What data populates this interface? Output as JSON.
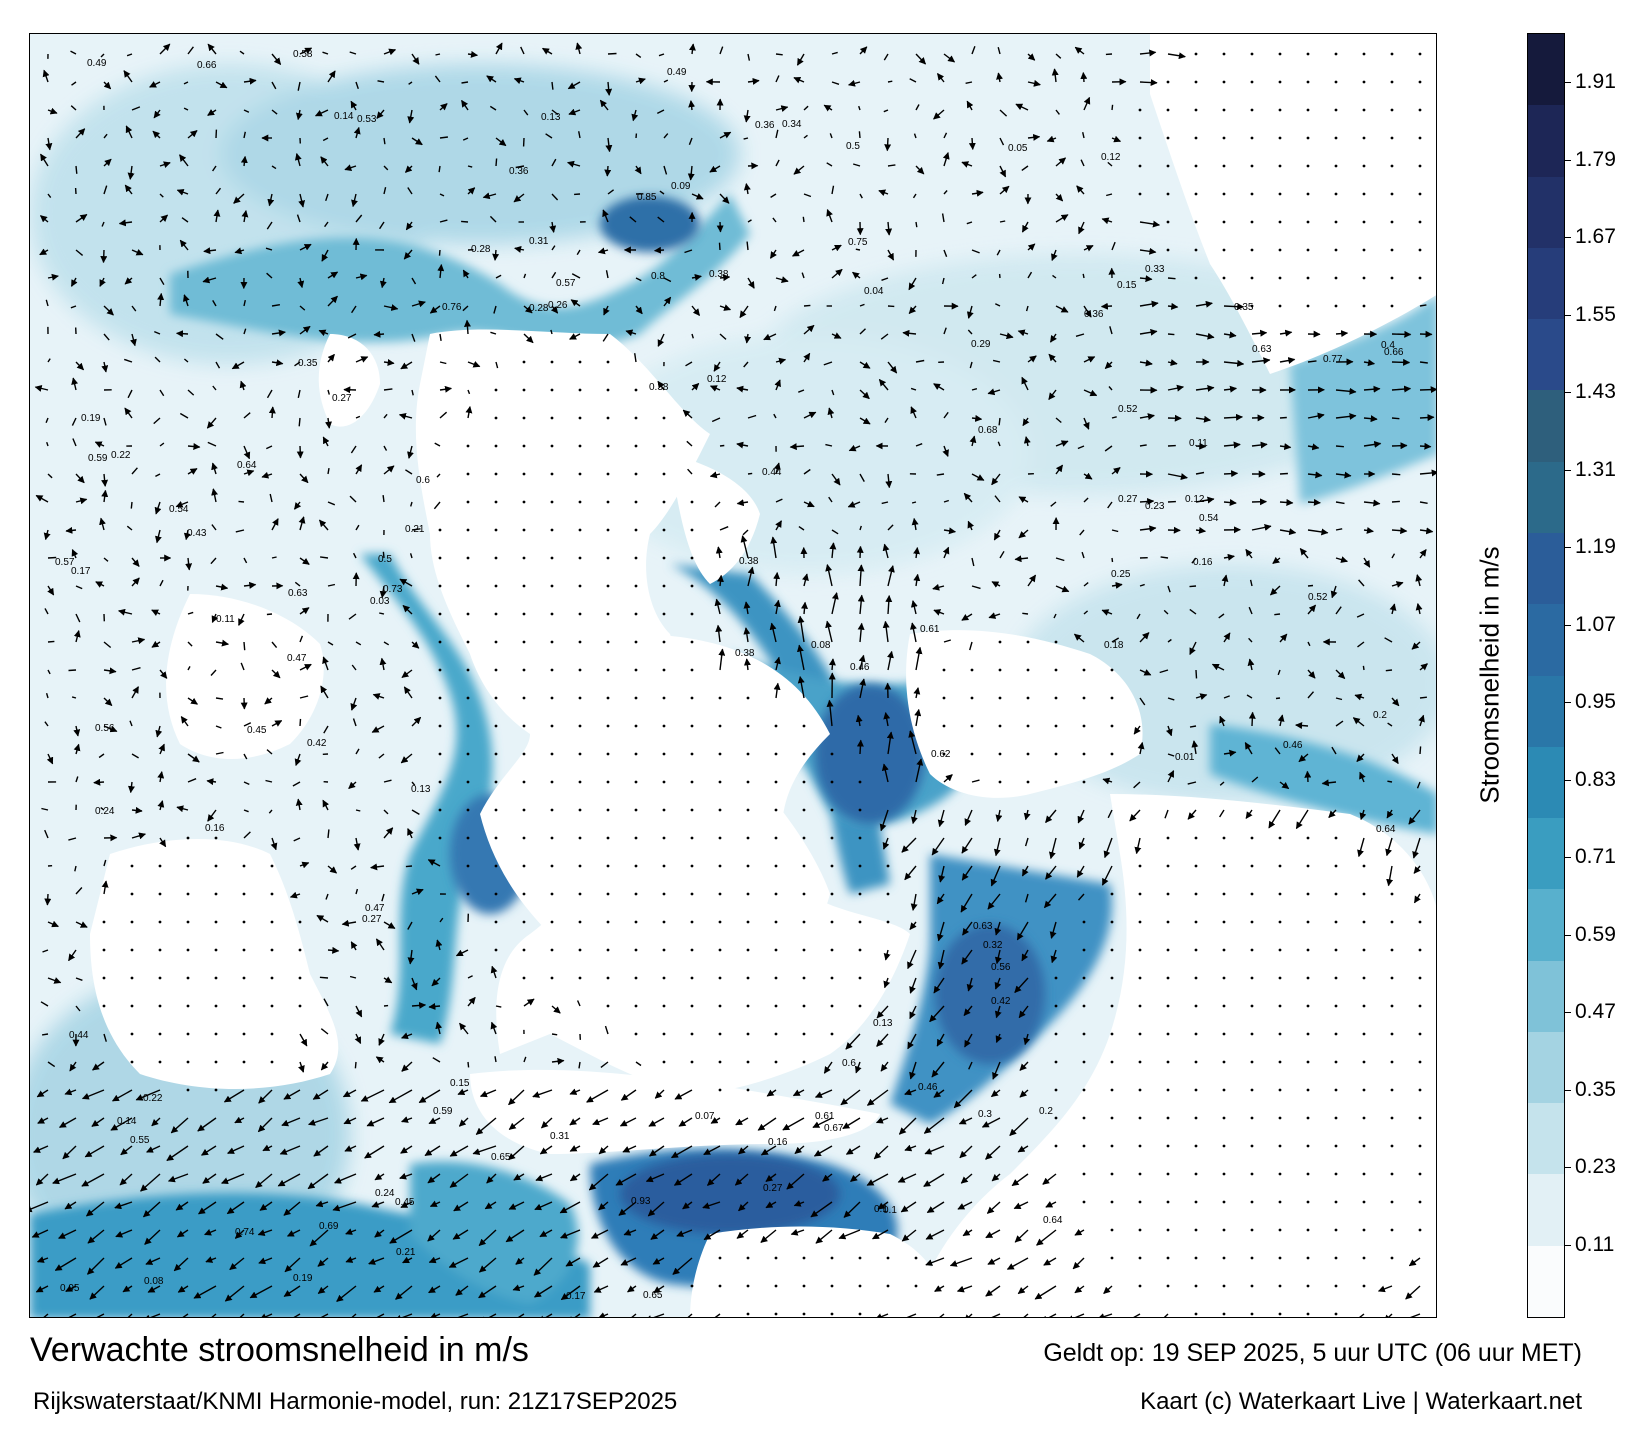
{
  "title": "Verwachte stroomsnelheid in m/s",
  "subtitle": "Rijkswaterstaat/KNMI Harmonie-model, run: 21Z17SEP2025",
  "valid_time": "Geldt op: 19 SEP 2025, 5 uur UTC (06 uur MET)",
  "credit": "Kaart (c) Waterkaart Live | Waterkaart.net",
  "colorbar": {
    "label": "Stroomsnelheid in m/s",
    "ticks": [
      "1.91",
      "1.79",
      "1.67",
      "1.55",
      "1.43",
      "1.31",
      "1.19",
      "1.07",
      "0.95",
      "0.83",
      "0.71",
      "0.59",
      "0.47",
      "0.35",
      "0.23",
      "0.11"
    ],
    "colors": [
      "#fafcfd",
      "#e2f0f5",
      "#c5e3ec",
      "#a4d3e2",
      "#7fc2d8",
      "#58b0cd",
      "#3a9dc0",
      "#2c8ab4",
      "#2a77a8",
      "#2b6aa2",
      "#2b5d99",
      "#2c6a8a",
      "#2e5f7c",
      "#2a4a8a",
      "#263d7a",
      "#223168",
      "#1d2656",
      "#151a3c"
    ]
  },
  "speed_labels": [
    {
      "v": "0.24"
    },
    {
      "v": "0.1"
    },
    {
      "v": "0.14"
    },
    {
      "v": "0.13"
    },
    {
      "v": "0.08"
    },
    {
      "v": "0.2"
    },
    {
      "v": "0.13"
    },
    {
      "v": "0.25"
    },
    {
      "v": "0.07"
    },
    {
      "v": "0.12"
    },
    {
      "v": "0.19"
    },
    {
      "v": "0.11"
    },
    {
      "v": "0.09"
    },
    {
      "v": "0.16"
    },
    {
      "v": "0.12"
    },
    {
      "v": "0.1"
    },
    {
      "v": "0.13"
    },
    {
      "v": "0.28"
    },
    {
      "v": "0.17"
    },
    {
      "v": "0.38"
    },
    {
      "v": "0.45"
    },
    {
      "v": "0.46"
    },
    {
      "v": "0.63"
    },
    {
      "v": "0.58"
    },
    {
      "v": "0.42"
    },
    {
      "v": "0.45"
    },
    {
      "v": "0.46"
    },
    {
      "v": "0.38"
    },
    {
      "v": "0.65"
    },
    {
      "v": "0.27"
    },
    {
      "v": "0.14"
    },
    {
      "v": "0.15"
    },
    {
      "v": "0.36"
    },
    {
      "v": "0.28"
    },
    {
      "v": "0.35"
    },
    {
      "v": "0.63"
    },
    {
      "v": "0.38"
    },
    {
      "v": "0.44"
    },
    {
      "v": "0.43"
    },
    {
      "v": "0.47"
    },
    {
      "v": "0.5"
    },
    {
      "v": "0.61"
    },
    {
      "v": "0.65"
    },
    {
      "v": "0.59"
    },
    {
      "v": "0.63"
    },
    {
      "v": "0.66"
    },
    {
      "v": "0.62"
    },
    {
      "v": "0.57"
    },
    {
      "v": "0.49"
    },
    {
      "v": "0.54"
    },
    {
      "v": "0.42"
    },
    {
      "v": "0.38"
    },
    {
      "v": "0.34"
    },
    {
      "v": "0.29"
    },
    {
      "v": "0.8"
    },
    {
      "v": "0.85"
    },
    {
      "v": "0.75"
    },
    {
      "v": "0.54"
    },
    {
      "v": "0.61"
    },
    {
      "v": "0.6"
    },
    {
      "v": "0.68"
    },
    {
      "v": "0.44"
    },
    {
      "v": "0.76"
    },
    {
      "v": "0.59"
    },
    {
      "v": "0.36"
    },
    {
      "v": "0.27"
    },
    {
      "v": "0.93"
    },
    {
      "v": "0.95"
    },
    {
      "v": "0.73"
    },
    {
      "v": "0.77"
    },
    {
      "v": "0.74"
    },
    {
      "v": "0.64"
    },
    {
      "v": "0.56"
    },
    {
      "v": "0.52"
    },
    {
      "v": "0.55"
    },
    {
      "v": "0.49"
    },
    {
      "v": "0.67"
    },
    {
      "v": "0.64"
    },
    {
      "v": "0.66"
    },
    {
      "v": "0.69"
    },
    {
      "v": "0.6"
    },
    {
      "v": "0.56"
    },
    {
      "v": "0.53"
    },
    {
      "v": "0.46"
    },
    {
      "v": "0.31"
    },
    {
      "v": "0.01"
    },
    {
      "v": "0.57"
    },
    {
      "v": "0.52"
    },
    {
      "v": "0.4"
    },
    {
      "v": "0.16"
    },
    {
      "v": "0.2"
    },
    {
      "v": "0.12"
    },
    {
      "v": "0.21"
    },
    {
      "v": "0.16"
    },
    {
      "v": "0.33"
    },
    {
      "v": "0.36"
    },
    {
      "v": "0.27"
    },
    {
      "v": "0.22"
    },
    {
      "v": "0.24"
    },
    {
      "v": "0.27"
    },
    {
      "v": "0.31"
    },
    {
      "v": "0.23"
    },
    {
      "v": "0.17"
    },
    {
      "v": "0.11"
    },
    {
      "v": "0.05"
    },
    {
      "v": "0.08"
    },
    {
      "v": "0.04"
    },
    {
      "v": "0.03"
    },
    {
      "v": "0.35"
    },
    {
      "v": "0.3"
    },
    {
      "v": "0.32"
    },
    {
      "v": "0.26"
    },
    {
      "v": "0.64"
    },
    {
      "v": "0.47"
    },
    {
      "v": "0.5"
    },
    {
      "v": "0.22"
    },
    {
      "v": "0.21"
    },
    {
      "v": "0.19"
    },
    {
      "v": "0.18"
    },
    {
      "v": "0.15"
    }
  ]
}
